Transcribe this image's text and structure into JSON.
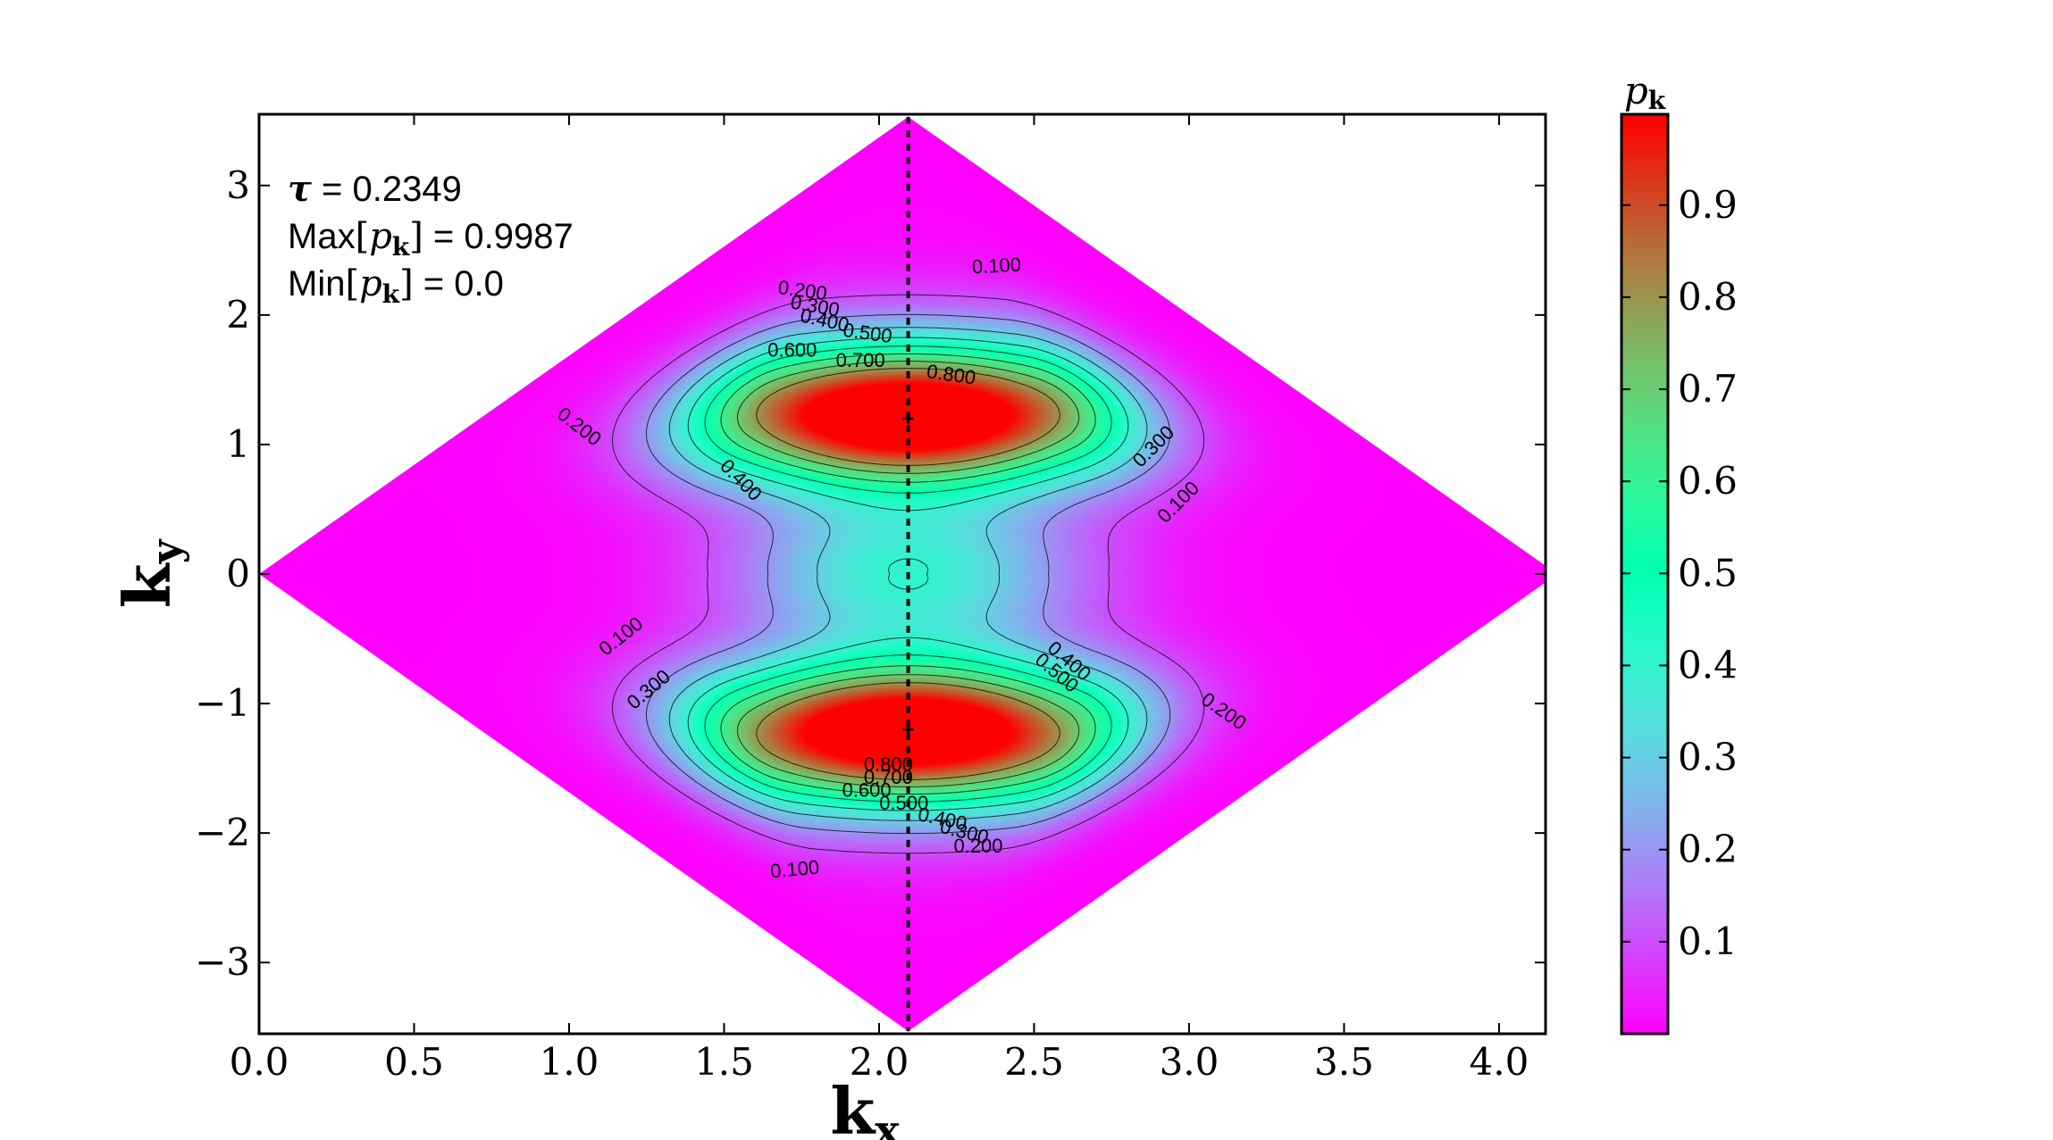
{
  "chart_data": {
    "type": "heatmap",
    "title": "",
    "xlabel": "k",
    "xlabel_sub": "x",
    "ylabel": "k",
    "ylabel_sub": "y",
    "xlim": [
      0.0,
      4.15
    ],
    "ylim": [
      -3.55,
      3.55
    ],
    "x_ticks": [
      0.0,
      0.5,
      1.0,
      1.5,
      2.0,
      2.5,
      3.0,
      3.5,
      4.0
    ],
    "x_tick_labels": [
      "0.0",
      "0.5",
      "1.0",
      "1.5",
      "2.0",
      "2.5",
      "3.0",
      "3.5",
      "4.0"
    ],
    "y_ticks": [
      3,
      2,
      1,
      0,
      -1,
      -2,
      -3
    ],
    "y_tick_labels": [
      "3",
      "2",
      "1",
      "0",
      "−1",
      "−2",
      "−3"
    ],
    "domain": "rhombus with vertices (0,0), (2.094,3.53), (4.189,0), (2.094,-3.53)",
    "dashed_line_x": 2.094,
    "maxima": [
      {
        "x": 2.094,
        "y": 1.2,
        "value": 0.9987
      },
      {
        "x": 2.094,
        "y": -1.2,
        "value": 0.9987
      }
    ],
    "contour_levels": [
      0.1,
      0.2,
      0.3,
      0.4,
      0.5,
      0.6,
      0.7,
      0.8
    ],
    "contour_labels": [
      {
        "text": "0.100",
        "x": 2.38,
        "y": 2.33,
        "rot": -3
      },
      {
        "text": "0.200",
        "x": 1.75,
        "y": 2.14,
        "rot": 8
      },
      {
        "text": "0.300",
        "x": 1.79,
        "y": 2.02,
        "rot": 10
      },
      {
        "text": "0.400",
        "x": 1.82,
        "y": 1.91,
        "rot": 12
      },
      {
        "text": "0.500",
        "x": 1.96,
        "y": 1.81,
        "rot": 8
      },
      {
        "text": "0.600",
        "x": 1.72,
        "y": 1.68,
        "rot": 0
      },
      {
        "text": "0.700",
        "x": 1.94,
        "y": 1.6,
        "rot": 0
      },
      {
        "text": "0.800",
        "x": 2.23,
        "y": 1.49,
        "rot": 8
      },
      {
        "text": "0.200",
        "x": 1.02,
        "y": 1.1,
        "rot": 38
      },
      {
        "text": "0.400",
        "x": 1.54,
        "y": 0.69,
        "rot": 45
      },
      {
        "text": "0.300",
        "x": 2.9,
        "y": 0.95,
        "rot": -45
      },
      {
        "text": "0.100",
        "x": 2.98,
        "y": 0.52,
        "rot": -45
      },
      {
        "text": "0.100",
        "x": 1.18,
        "y": -0.52,
        "rot": -38
      },
      {
        "text": "0.300",
        "x": 1.27,
        "y": -0.93,
        "rot": -40
      },
      {
        "text": "0.400",
        "x": 2.6,
        "y": -0.71,
        "rot": 40
      },
      {
        "text": "0.500",
        "x": 2.56,
        "y": -0.8,
        "rot": 40
      },
      {
        "text": "0.200",
        "x": 3.1,
        "y": -1.1,
        "rot": 35
      },
      {
        "text": "0.800",
        "x": 2.03,
        "y": -1.52,
        "rot": 0
      },
      {
        "text": "0.700",
        "x": 2.03,
        "y": -1.62,
        "rot": 0
      },
      {
        "text": "0.600",
        "x": 1.96,
        "y": -1.72,
        "rot": 0
      },
      {
        "text": "0.500",
        "x": 2.08,
        "y": -1.82,
        "rot": 0
      },
      {
        "text": "0.400",
        "x": 2.2,
        "y": -1.94,
        "rot": 12
      },
      {
        "text": "0.300",
        "x": 2.27,
        "y": -2.04,
        "rot": 14
      },
      {
        "text": "0.200",
        "x": 2.32,
        "y": -2.15,
        "rot": 0
      },
      {
        "text": "0.100",
        "x": 1.73,
        "y": -2.33,
        "rot": -5
      }
    ],
    "annotations": [
      {
        "symbol": "τ",
        "text": " = 0.2349"
      },
      {
        "text": "Max",
        "bracket_text": "p",
        "sub": "k",
        "value": " = 0.9987"
      },
      {
        "text": "Min",
        "bracket_text": "p",
        "sub": "k",
        "value": "  = 0.0"
      }
    ],
    "colorbar": {
      "label": "p",
      "label_sub": "k",
      "colormap": "rainbow",
      "range": [
        0.0,
        0.9987
      ],
      "ticks": [
        0.1,
        0.2,
        0.3,
        0.4,
        0.5,
        0.6,
        0.7,
        0.8,
        0.9
      ],
      "tick_labels": [
        "0.1",
        "0.2",
        "0.3",
        "0.4",
        "0.5",
        "0.6",
        "0.7",
        "0.8",
        "0.9"
      ]
    },
    "grid": false,
    "legend": "none"
  }
}
